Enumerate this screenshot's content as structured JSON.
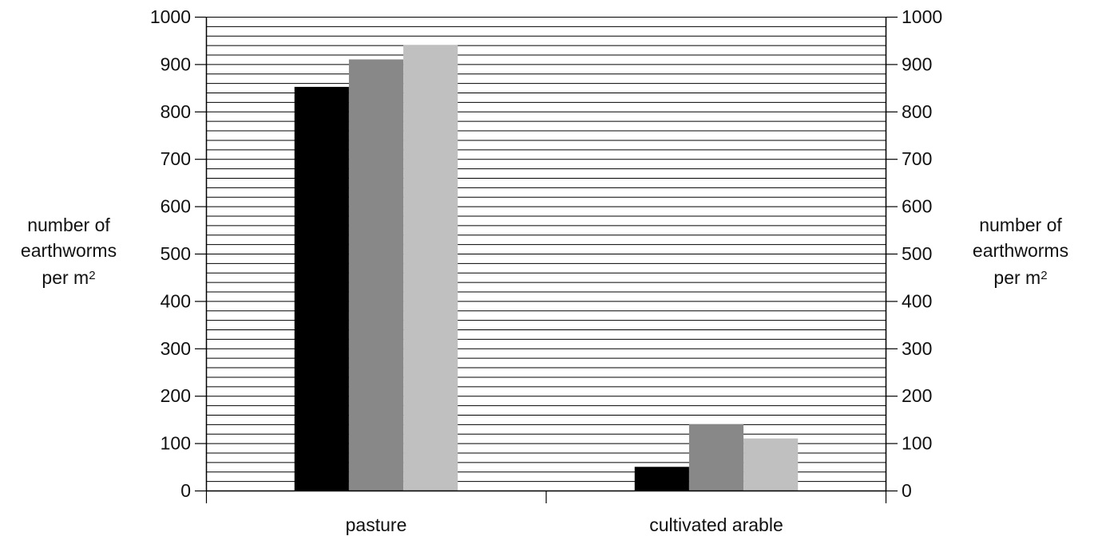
{
  "chart_data": {
    "type": "bar",
    "categories": [
      "pasture",
      "cultivated arable"
    ],
    "series": [
      {
        "values": [
          852,
          50
        ],
        "color": "#000000"
      },
      {
        "values": [
          910,
          140
        ],
        "color": "#888888"
      },
      {
        "values": [
          940,
          110
        ],
        "color": "#c0c0c0"
      }
    ],
    "ylim": [
      0,
      1000
    ],
    "yticks": [
      0,
      100,
      200,
      300,
      400,
      500,
      600,
      700,
      800,
      900,
      1000
    ],
    "minor_step": 20,
    "ylabel": {
      "line1": "number of",
      "line2": "earthworms",
      "line3": "per m",
      "sup": "2"
    },
    "ylabel_right": {
      "line1": "number of",
      "line2": "earthworms",
      "line3": "per m",
      "sup": "2"
    },
    "grid": "horizontal lines every 20 units",
    "legend": "none"
  }
}
